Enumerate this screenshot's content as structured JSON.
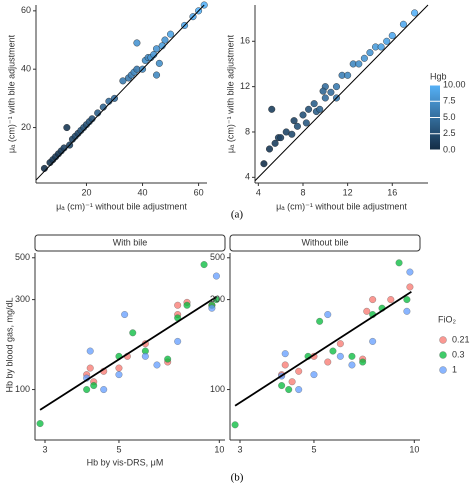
{
  "chart_data": [
    {
      "type": "scatter",
      "xlabel": "μₐ (cm)⁻¹ without bile adjustment",
      "ylabel": "μₐ (cm)⁻¹ with bile adjustment",
      "xlim": [
        2,
        63
      ],
      "ylim": [
        1,
        62
      ],
      "xticks": [
        20,
        40,
        60
      ],
      "yticks": [
        20,
        40,
        60
      ],
      "diagonal": true,
      "cmap": [
        "#132B43",
        "#56B1F7"
      ],
      "clim": [
        0,
        10
      ],
      "x": [
        5,
        7,
        8,
        9,
        10,
        11,
        12,
        13,
        14,
        15,
        16,
        17,
        18,
        19,
        20,
        21,
        22,
        24,
        26,
        28,
        30,
        33,
        35,
        36,
        37,
        38,
        40,
        41,
        42,
        43,
        44,
        45,
        46,
        47,
        48,
        50,
        55,
        58,
        60,
        62,
        38,
        45
      ],
      "y": [
        6,
        8,
        9,
        10,
        11,
        12,
        13,
        20,
        14,
        16,
        17,
        18,
        19,
        20,
        21,
        22,
        23,
        25,
        27,
        29,
        30,
        36,
        37,
        38,
        39,
        40,
        40,
        43,
        44,
        44,
        45,
        47,
        42,
        48,
        50,
        52,
        55,
        58,
        60,
        62,
        49,
        38
      ],
      "color_values": [
        0.5,
        0.8,
        1,
        1.2,
        1,
        1.5,
        1.8,
        1,
        2,
        2,
        2.5,
        2.2,
        3,
        3,
        3,
        3.5,
        3,
        4,
        4.5,
        5,
        5,
        6,
        6,
        6.5,
        7,
        6,
        7,
        7.5,
        7,
        8,
        8,
        8,
        7.5,
        8.5,
        8,
        9,
        9.5,
        9.5,
        10,
        10,
        8,
        7
      ]
    },
    {
      "type": "scatter",
      "xlabel": "μₐ (cm)⁻¹ without bile adjustment",
      "ylabel": "μₐ (cm)⁻¹ with bile adjustment",
      "xlim": [
        3.7,
        19.2
      ],
      "ylim": [
        3.5,
        19.2
      ],
      "xticks": [
        4,
        8,
        12,
        16
      ],
      "yticks": [
        4,
        8,
        12,
        16
      ],
      "diagonal": true,
      "cmap": [
        "#132B43",
        "#56B1F7"
      ],
      "clim": [
        0,
        10
      ],
      "colorbar": {
        "title": "Hgb",
        "ticks": [
          {
            "value": 0,
            "label": "0.0"
          },
          2.5,
          {
            "value": 5,
            "label": "5.0"
          },
          7.5,
          {
            "value": 10,
            "label": "10.00"
          }
        ]
      },
      "x": [
        4.5,
        5,
        5.2,
        5.5,
        5.8,
        6,
        6.5,
        7,
        7.2,
        7.5,
        8,
        8.3,
        8.5,
        9,
        9.2,
        9.5,
        10,
        10.5,
        11,
        11.5,
        12,
        12.5,
        13,
        13.5,
        14,
        14.5,
        15,
        15.5,
        16,
        17,
        18,
        10,
        11,
        9.8
      ],
      "y": [
        5.2,
        6.5,
        10,
        7,
        7.5,
        7.5,
        8,
        7.8,
        9,
        8.5,
        9.5,
        8.8,
        10,
        10.5,
        9.8,
        10,
        11,
        11.5,
        12,
        13,
        13,
        14,
        14,
        14.5,
        15,
        15.5,
        15.5,
        16,
        16.5,
        17.5,
        18.5,
        12,
        11,
        11.6
      ],
      "color_values": [
        0.5,
        1,
        1.5,
        1.5,
        2,
        1.8,
        2,
        2.5,
        2,
        3,
        3,
        3.5,
        3,
        4,
        4,
        4.5,
        5,
        5,
        6,
        6.5,
        7,
        7,
        7.5,
        8,
        8,
        8.5,
        9,
        9,
        9.5,
        9.5,
        10,
        5,
        6,
        4.5
      ]
    },
    {
      "type": "scatter",
      "facet": "With bile",
      "xlog": true,
      "ylog": true,
      "xlim": [
        2.8,
        10.4
      ],
      "ylim": [
        54,
        530
      ],
      "xticks": [
        3,
        5,
        10
      ],
      "yticks": [
        100,
        300,
        500
      ],
      "series": [
        {
          "name": "0.21",
          "color": "#f8766d",
          "x": [
            4,
            4.1,
            4.2,
            4.5,
            5,
            5.3,
            6,
            7,
            7.5,
            7.5,
            8,
            9.5
          ],
          "values": [
            120,
            130,
            110,
            125,
            130,
            150,
            175,
            140,
            280,
            250,
            290,
            280
          ]
        },
        {
          "name": "0.3",
          "color": "#00ba38",
          "x": [
            2.9,
            4,
            4.2,
            5,
            5.5,
            6,
            7,
            7.5,
            8,
            9,
            9.5,
            9.8
          ],
          "values": [
            66,
            100,
            105,
            150,
            200,
            160,
            145,
            240,
            280,
            460,
            280,
            300
          ]
        },
        {
          "name": "1",
          "color": "#619cff",
          "x": [
            4,
            4.1,
            4.5,
            5,
            5.2,
            6,
            6.5,
            7.5,
            9.5,
            9.8
          ],
          "values": [
            115,
            160,
            100,
            120,
            250,
            150,
            135,
            180,
            270,
            400
          ]
        }
      ],
      "trend": {
        "x": [
          2.9,
          9.8
        ],
        "values": [
          78,
          310
        ]
      }
    },
    {
      "type": "scatter",
      "facet": "Without bile",
      "xlog": true,
      "ylog": true,
      "xlim": [
        2.8,
        10.4
      ],
      "ylim": [
        54,
        530
      ],
      "xticks": [
        3,
        5,
        10
      ],
      "yticks": [
        100,
        300,
        500
      ],
      "series": [
        {
          "name": "0.21",
          "color": "#f8766d",
          "x": [
            4,
            4.1,
            4.3,
            4.5,
            5,
            5.5,
            6,
            7,
            7.2,
            7.5,
            8.5,
            9.7
          ],
          "values": [
            120,
            135,
            110,
            125,
            150,
            140,
            175,
            145,
            260,
            300,
            300,
            350
          ]
        },
        {
          "name": "0.3",
          "color": "#00ba38",
          "x": [
            2.9,
            4,
            4.2,
            4.8,
            5.2,
            5.7,
            6.5,
            7,
            7.5,
            8,
            9,
            9.5
          ],
          "values": [
            65,
            105,
            100,
            150,
            230,
            160,
            150,
            140,
            250,
            270,
            470,
            300
          ]
        },
        {
          "name": "1",
          "color": "#619cff",
          "x": [
            4,
            4.1,
            4.5,
            5,
            5.5,
            6,
            6.5,
            7.5,
            9.5,
            9.7
          ],
          "values": [
            118,
            155,
            100,
            120,
            250,
            150,
            135,
            180,
            260,
            420
          ]
        }
      ],
      "trend": {
        "x": [
          2.9,
          9.8
        ],
        "values": [
          82,
          330
        ]
      }
    }
  ],
  "figure_b": {
    "xlabel": "Hb by vis-DRS, μM",
    "ylabel": "Hb by blood gas, mg/dL",
    "legend_title": "FiO₂"
  },
  "caption_a": "(a)",
  "caption_b": "(b)"
}
